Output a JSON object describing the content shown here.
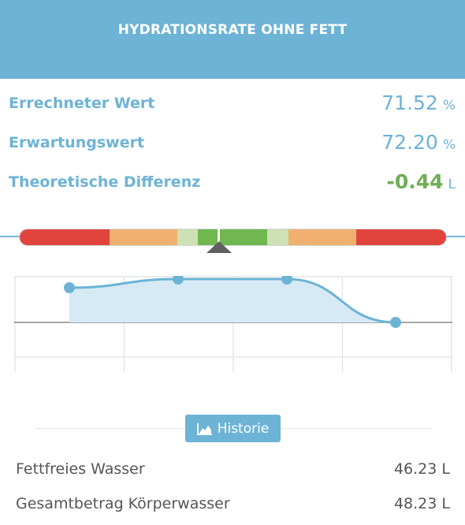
{
  "header": {
    "title": "HYDRATIONSRATE OHNE FETT"
  },
  "metrics": [
    {
      "label": "Errechneter Wert",
      "value": "71.52",
      "unit": "%"
    },
    {
      "label": "Erwartungswert",
      "value": "72.20",
      "unit": "%"
    },
    {
      "label": "Theoretische Differenz",
      "value": "-0.44",
      "unit": "L"
    }
  ],
  "colors": {
    "accent": "#6db3d6",
    "positive": "#6fae54",
    "scale_red": "#e0443c",
    "scale_orange": "#f0b06f",
    "scale_light_green": "#cfe0b4",
    "scale_green": "#6fb74e"
  },
  "history_button": {
    "label": "Historie",
    "icon": "area-chart-icon"
  },
  "info": [
    {
      "label": "Fettfreies Wasser",
      "value": "46.23 L"
    },
    {
      "label": "Gesamtbetrag Körperwasser",
      "value": "48.23 L"
    }
  ],
  "chart_data": {
    "type": "line",
    "x": [
      1,
      2,
      3,
      4
    ],
    "series": [
      {
        "values": [
          0.16,
          0.2,
          0.2,
          0.0
        ]
      }
    ],
    "baseline": 0.0,
    "grid": true,
    "area_fill": true
  }
}
